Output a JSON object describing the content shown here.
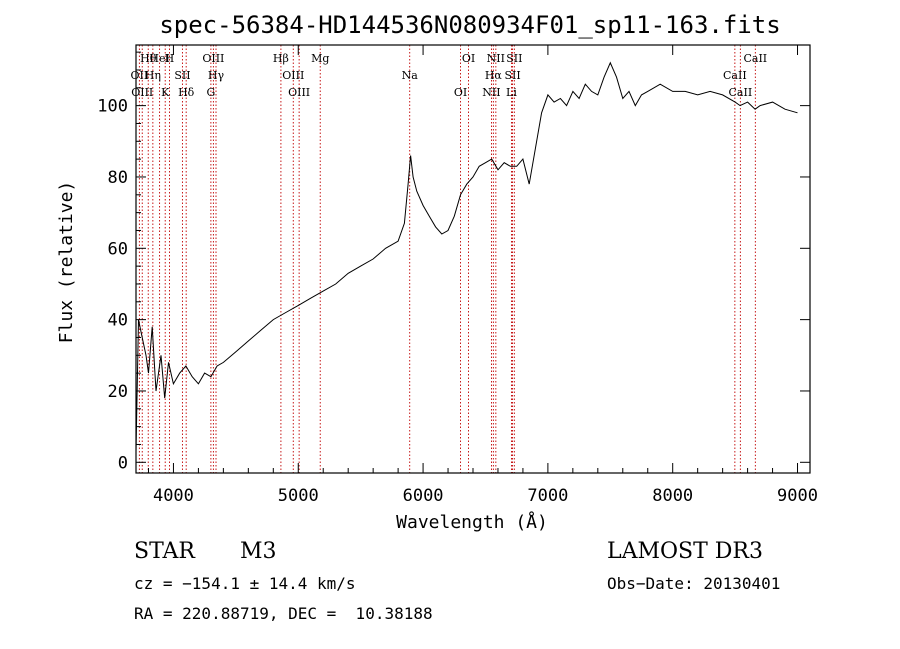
{
  "chart_data": {
    "type": "line",
    "title": "spec-56384-HD144536N080934F01_sp11-163.fits",
    "xlabel": "Wavelength (Å)",
    "ylabel": "Flux (relative)",
    "xlim": [
      3700,
      9100
    ],
    "ylim": [
      -3,
      117
    ],
    "xticks": [
      4000,
      5000,
      6000,
      7000,
      8000,
      9000
    ],
    "yticks": [
      0,
      20,
      40,
      60,
      80,
      100
    ],
    "series": [
      {
        "name": "flux",
        "x": [
          3700,
          3720,
          3750,
          3780,
          3800,
          3830,
          3860,
          3900,
          3930,
          3960,
          4000,
          4050,
          4100,
          4150,
          4200,
          4250,
          4300,
          4350,
          4400,
          4500,
          4600,
          4700,
          4800,
          4900,
          5000,
          5100,
          5200,
          5300,
          5400,
          5500,
          5600,
          5700,
          5800,
          5850,
          5880,
          5900,
          5920,
          5950,
          6000,
          6050,
          6100,
          6150,
          6200,
          6250,
          6300,
          6350,
          6400,
          6450,
          6500,
          6550,
          6600,
          6650,
          6700,
          6750,
          6800,
          6850,
          6900,
          6950,
          7000,
          7050,
          7100,
          7150,
          7200,
          7250,
          7300,
          7350,
          7400,
          7450,
          7500,
          7550,
          7600,
          7650,
          7700,
          7750,
          7800,
          7900,
          8000,
          8100,
          8200,
          8300,
          8400,
          8500,
          8540,
          8600,
          8660,
          8700,
          8800,
          8900,
          9000
        ],
        "y": [
          3,
          40,
          35,
          30,
          25,
          38,
          20,
          30,
          18,
          28,
          22,
          25,
          27,
          24,
          22,
          25,
          24,
          27,
          28,
          31,
          34,
          37,
          40,
          42,
          44,
          46,
          48,
          50,
          53,
          55,
          57,
          60,
          62,
          67,
          78,
          86,
          80,
          76,
          72,
          69,
          66,
          64,
          65,
          69,
          75,
          78,
          80,
          83,
          84,
          85,
          82,
          84,
          83,
          83,
          85,
          78,
          88,
          98,
          103,
          101,
          102,
          100,
          104,
          102,
          106,
          104,
          103,
          108,
          112,
          108,
          102,
          104,
          100,
          103,
          104,
          106,
          104,
          104,
          103,
          104,
          103,
          101,
          100,
          101,
          99,
          100,
          101,
          99,
          98
        ]
      }
    ],
    "line_markers": [
      {
        "label": "Hθ",
        "x": 3798
      },
      {
        "label": "OII",
        "x": 3727
      },
      {
        "label": "OIII",
        "x": 3750
      },
      {
        "label": "HeI",
        "x": 3889
      },
      {
        "label": "Hη",
        "x": 3835
      },
      {
        "label": "K",
        "x": 3934
      },
      {
        "label": "H",
        "x": 3968
      },
      {
        "label": "SII",
        "x": 4072
      },
      {
        "label": "Hδ",
        "x": 4102
      },
      {
        "label": "OIII",
        "x": 4320
      },
      {
        "label": "Hγ",
        "x": 4341
      },
      {
        "label": "G",
        "x": 4300
      },
      {
        "label": "Hβ",
        "x": 4861
      },
      {
        "label": "OIII",
        "x": 4960
      },
      {
        "label": "OIII",
        "x": 5007
      },
      {
        "label": "Mg",
        "x": 5176
      },
      {
        "label": "Na",
        "x": 5893
      },
      {
        "label": "OI",
        "x": 6300
      },
      {
        "label": "OI",
        "x": 6364
      },
      {
        "label": "Hα",
        "x": 6563
      },
      {
        "label": "NII",
        "x": 6548
      },
      {
        "label": "NII",
        "x": 6583
      },
      {
        "label": "SII",
        "x": 6717
      },
      {
        "label": "Li",
        "x": 6708
      },
      {
        "label": "SII",
        "x": 6731
      },
      {
        "label": "CaII",
        "x": 8498
      },
      {
        "label": "CaII",
        "x": 8542
      },
      {
        "label": "CaII",
        "x": 8662
      }
    ]
  },
  "info": {
    "class_label": "STAR",
    "subclass": "M3",
    "survey": "LAMOST DR3",
    "cz": "cz = −154.1 ± 14.4 km/s",
    "obs_date": "Obs−Date: 20130401",
    "coords": "RA = 220.88719, DEC =  10.38188"
  }
}
